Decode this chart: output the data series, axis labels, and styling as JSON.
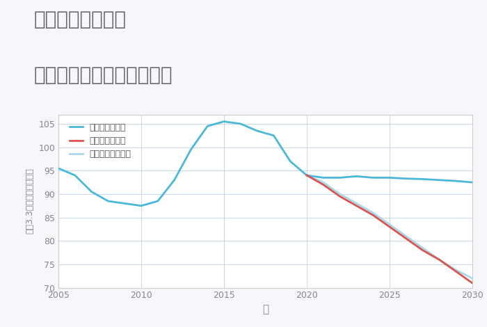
{
  "title_line1": "奈良県高の原駅の",
  "title_line2": "中古マンションの価格推移",
  "xlabel": "年",
  "ylabel": "坪（3.3㎡）単価（万円）",
  "ylim": [
    70,
    107
  ],
  "yticks": [
    70,
    75,
    80,
    85,
    90,
    95,
    100,
    105
  ],
  "xticks": [
    2005,
    2010,
    2015,
    2020,
    2025,
    2030
  ],
  "background_color": "#f5f7fb",
  "plot_bg_color": "#ffffff",
  "good_scenario": {
    "label": "グッドシナリオ",
    "color": "#4ab8d8",
    "years": [
      2005,
      2006,
      2007,
      2008,
      2009,
      2010,
      2011,
      2012,
      2013,
      2014,
      2015,
      2016,
      2017,
      2018,
      2019,
      2020,
      2021,
      2022,
      2023,
      2024,
      2025,
      2026,
      2027,
      2028,
      2029,
      2030
    ],
    "values": [
      95.5,
      94.0,
      90.5,
      88.5,
      88.0,
      87.5,
      88.5,
      93.0,
      99.5,
      104.5,
      105.5,
      105.0,
      103.5,
      102.5,
      97.0,
      94.0,
      93.5,
      93.5,
      93.8,
      93.5,
      93.5,
      93.3,
      93.2,
      93.0,
      92.8,
      92.5
    ]
  },
  "bad_scenario": {
    "label": "バッドシナリオ",
    "color": "#d9534f",
    "years": [
      2020,
      2021,
      2022,
      2023,
      2024,
      2025,
      2026,
      2027,
      2028,
      2029,
      2030
    ],
    "values": [
      94.0,
      92.0,
      89.5,
      87.5,
      85.5,
      83.0,
      80.5,
      78.0,
      76.0,
      73.5,
      71.0
    ]
  },
  "normal_scenario": {
    "label": "ノーマルシナリオ",
    "color": "#a8d8ea",
    "years": [
      2020,
      2021,
      2022,
      2023,
      2024,
      2025,
      2026,
      2027,
      2028,
      2029,
      2030
    ],
    "values": [
      94.0,
      92.5,
      90.0,
      88.0,
      86.0,
      83.5,
      81.0,
      78.5,
      76.0,
      73.8,
      72.0
    ]
  },
  "title_color": "#666666",
  "axis_color": "#cccccc",
  "grid_color": "#c8d8e8",
  "tick_color": "#888888",
  "legend_text_color": "#555555"
}
